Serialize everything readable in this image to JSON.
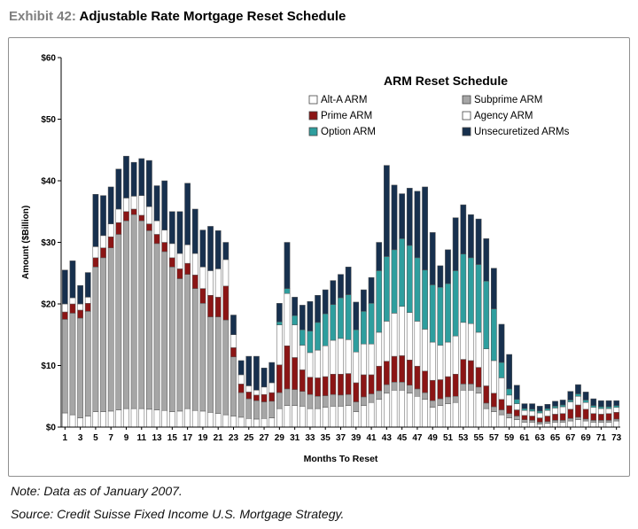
{
  "exhibit": {
    "label": "Exhibit 42:",
    "title": "Adjustable Rate Mortgage Reset Schedule"
  },
  "chart_data": {
    "type": "bar",
    "stacked": true,
    "legend_title": "ARM Reset Schedule",
    "xlabel": "Months To Reset",
    "ylabel": "Amount ($Billion)",
    "ylim": [
      0,
      60
    ],
    "yticks": [
      "$0",
      "$10",
      "$20",
      "$30",
      "$40",
      "$50",
      "$60"
    ],
    "xticks": [
      "1",
      "3",
      "5",
      "7",
      "9",
      "11",
      "13",
      "15",
      "17",
      "19",
      "21",
      "23",
      "25",
      "27",
      "29",
      "31",
      "33",
      "35",
      "37",
      "39",
      "41",
      "43",
      "45",
      "47",
      "49",
      "51",
      "53",
      "55",
      "57",
      "59",
      "61",
      "63",
      "65",
      "67",
      "69",
      "71",
      "73"
    ],
    "grid": false,
    "legend_position": "top-right",
    "x": [
      1,
      2,
      3,
      4,
      5,
      6,
      7,
      8,
      9,
      10,
      11,
      12,
      13,
      14,
      15,
      16,
      17,
      18,
      19,
      20,
      21,
      22,
      23,
      24,
      25,
      26,
      27,
      28,
      29,
      30,
      31,
      32,
      33,
      34,
      35,
      36,
      37,
      38,
      39,
      40,
      41,
      42,
      43,
      44,
      45,
      46,
      47,
      48,
      49,
      50,
      51,
      52,
      53,
      54,
      55,
      56,
      57,
      58,
      59,
      60,
      61,
      62,
      63,
      64,
      65,
      66,
      67,
      68,
      69,
      70,
      71,
      72,
      73
    ],
    "series": [
      {
        "name": "Alt-A ARM",
        "color": "#ffffff",
        "values": [
          2.3,
          2,
          1.5,
          1.8,
          2.5,
          2.5,
          2.6,
          2.8,
          3,
          3,
          3,
          2.9,
          2.8,
          2.7,
          2.5,
          2.6,
          3,
          2.7,
          2.6,
          2.4,
          2.2,
          2,
          1.8,
          1.6,
          1.4,
          1.3,
          1.4,
          1.5,
          3,
          3.5,
          3.5,
          3.4,
          3,
          3,
          3.2,
          3.4,
          3.4,
          3.5,
          2.5,
          3.5,
          4,
          4.5,
          5.5,
          6,
          6,
          5.5,
          5,
          4.5,
          3.2,
          3.5,
          3.8,
          4,
          6,
          6,
          5.5,
          3,
          2.5,
          2,
          1.5,
          1.2,
          0.8,
          0.8,
          0.5,
          0.6,
          0.8,
          0.8,
          1,
          1.2,
          1,
          0.8,
          0.8,
          0.8,
          1
        ]
      },
      {
        "name": "Subprime ARM",
        "color": "#a6a6a6",
        "values": [
          15.2,
          16.5,
          16.2,
          17,
          23.5,
          25,
          26.5,
          28.5,
          30.5,
          31.5,
          30.5,
          29,
          27,
          25.8,
          23.5,
          21.5,
          21.8,
          19.8,
          17.5,
          15.5,
          15.7,
          15.4,
          9.6,
          4,
          3.2,
          3,
          2.7,
          2.7,
          2.6,
          2.7,
          2.6,
          2.4,
          2.3,
          2,
          1.9,
          1.9,
          1.8,
          1.8,
          1.6,
          1.4,
          1.4,
          1.4,
          1.4,
          1.3,
          1.3,
          1.3,
          1.2,
          1.1,
          1.1,
          1.1,
          1.1,
          1,
          1,
          1,
          1,
          0.9,
          0.8,
          0.8,
          0.7,
          0.6,
          0.4,
          0.3,
          0.3,
          0.3,
          0.3,
          0.3,
          0.4,
          0.4,
          0.3,
          0.3,
          0.3,
          0.3,
          0.3
        ]
      },
      {
        "name": "Prime ARM",
        "color": "#8b1515",
        "values": [
          1.2,
          1.5,
          1.3,
          1.3,
          1.5,
          1.6,
          1.8,
          1.9,
          1.5,
          0.9,
          0.9,
          1.1,
          1.5,
          1.5,
          1.5,
          1.6,
          1.8,
          2.2,
          2.4,
          3.5,
          3.2,
          5.5,
          1.5,
          1.4,
          1.1,
          0.9,
          1.2,
          1.4,
          4.5,
          7,
          5.2,
          3.5,
          2.8,
          3,
          3.1,
          3.3,
          3.4,
          3.4,
          3.1,
          3.6,
          3.1,
          4,
          3.8,
          4.2,
          4.3,
          4.1,
          3.7,
          3.5,
          3.3,
          3.1,
          3.3,
          3.6,
          4,
          3.8,
          3.2,
          2.8,
          2.2,
          1.7,
          1.3,
          1,
          0.7,
          0.7,
          0.7,
          0.9,
          1,
          1.1,
          1.5,
          2,
          1.6,
          1.1,
          1,
          1.1,
          1.1
        ]
      },
      {
        "name": "Agency ARM",
        "color": "#ffffff",
        "values": [
          1.3,
          1,
          1,
          1,
          1.8,
          2,
          2.1,
          2.2,
          2.2,
          2.1,
          3.2,
          2.8,
          2.2,
          2,
          2.3,
          2.5,
          3,
          3.5,
          3.5,
          4,
          4.6,
          4.3,
          2.1,
          1.5,
          1,
          0.8,
          1.2,
          1.6,
          6.5,
          8.5,
          5.3,
          4,
          4,
          4.5,
          5,
          5.5,
          5.8,
          5.5,
          5,
          5,
          5,
          5.5,
          6.5,
          7,
          8,
          7.7,
          7.3,
          6.8,
          6.2,
          5.6,
          5.6,
          6.2,
          6,
          6,
          5.7,
          6,
          5.3,
          3.5,
          1.7,
          1,
          0.8,
          0.8,
          0.8,
          0.9,
          1,
          1.1,
          1.2,
          1.4,
          1.1,
          1,
          0.9,
          0.8,
          0.8
        ]
      },
      {
        "name": "Option ARM",
        "color": "#2e9e9e",
        "values": [
          0,
          0,
          0,
          0,
          0,
          0,
          0,
          0,
          0,
          0,
          0,
          0,
          0,
          0,
          0,
          0,
          0,
          0,
          0,
          0,
          0,
          0,
          0,
          0,
          0,
          0,
          0,
          0,
          0.5,
          0.8,
          1.5,
          2.5,
          3.5,
          4.5,
          5.2,
          5.8,
          6.6,
          7.3,
          3.6,
          5.3,
          6.6,
          10,
          10.5,
          10.3,
          11,
          10.9,
          10.3,
          9.6,
          9.3,
          9.4,
          9.5,
          10.6,
          11.1,
          10.7,
          11,
          11,
          8.4,
          2.5,
          1,
          0.7,
          0.3,
          0.3,
          0.3,
          0.3,
          0.3,
          0.3,
          0.3,
          0.4,
          0.4,
          0.3,
          0.3,
          0.3,
          0.3
        ]
      },
      {
        "name": "Unsecuretized ARMs",
        "color": "#17304e",
        "values": [
          5.5,
          6,
          3,
          4,
          8.5,
          6.5,
          6,
          6.5,
          6.8,
          5.5,
          6,
          7.5,
          5.7,
          8,
          5.2,
          6.8,
          10,
          7.2,
          6,
          7.2,
          6.2,
          2.8,
          3.2,
          2.3,
          4.8,
          5.5,
          3.1,
          3.3,
          3,
          7.5,
          3,
          4,
          4.8,
          4.4,
          3.9,
          3.9,
          3.8,
          4.5,
          4.5,
          3.5,
          4.2,
          4.6,
          14.8,
          10.5,
          7.3,
          9.3,
          10.8,
          13.5,
          8.5,
          3.5,
          5.5,
          8.6,
          8,
          7,
          7.4,
          6.9,
          6.6,
          6.2,
          5.6,
          2.3,
          0.8,
          0.9,
          0.8,
          0.7,
          0.8,
          0.8,
          1.4,
          1.5,
          1.3,
          1.1,
          1,
          1,
          0.8
        ]
      }
    ]
  },
  "notes": {
    "note": "Note: Data as of January 2007.",
    "source": "Source: Credit Suisse Fixed Income U.S. Mortgage Strategy."
  }
}
